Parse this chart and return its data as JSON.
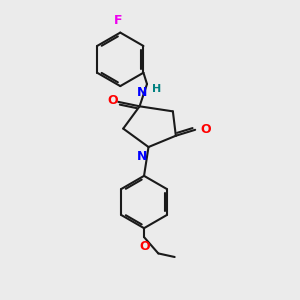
{
  "bg_color": "#ebebeb",
  "bond_color": "#1a1a1a",
  "N_color": "#0000ff",
  "O_color": "#ff0000",
  "F_color": "#ee00ee",
  "NH_color": "#008080",
  "figsize": [
    3.0,
    3.0
  ],
  "dpi": 100,
  "xlim": [
    0,
    10
  ],
  "ylim": [
    0,
    10
  ]
}
